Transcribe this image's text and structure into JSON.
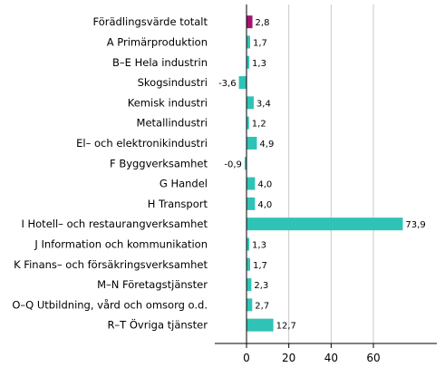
{
  "chart_data": {
    "type": "bar",
    "orientation": "horizontal",
    "categories": [
      "Förädlingsvärde totalt",
      "A Primärproduktion",
      "B–E Hela industrin",
      "Skogsindustri",
      "Kemisk industri",
      "Metallindustri",
      "El– och elektronikindustri",
      "F Byggverksamhet",
      "G Handel",
      "H Transport",
      "I Hotell– och restaurangverksamhet",
      "J Information och kommunikation",
      "K Finans– och försäkringsverksamhet",
      "M–N Företagstjänster",
      "O–Q Utbildning, vård och omsorg o.d.",
      "R–T Övriga tjänster"
    ],
    "values": [
      2.8,
      1.7,
      1.3,
      -3.6,
      3.4,
      1.2,
      4.9,
      -0.9,
      4.0,
      4.0,
      73.9,
      1.3,
      1.7,
      2.3,
      2.7,
      12.7
    ],
    "value_labels": [
      "2,8",
      "1,7",
      "1,3",
      "-3,6",
      "3,4",
      "1,2",
      "4,9",
      "-0,9",
      "4,0",
      "4,0",
      "73,9",
      "1,3",
      "1,7",
      "2,3",
      "2,7",
      "12,7"
    ],
    "xlim": [
      -15,
      90
    ],
    "xticks": [
      0,
      20,
      40,
      60
    ],
    "xtick_labels": [
      "0",
      "20",
      "40",
      "60"
    ],
    "grid": true,
    "colors": {
      "highlight": "#a6126e",
      "bar": "#2fc3b6",
      "grid": "#c8c8c8",
      "axis": "#000000"
    },
    "highlight_index": 0
  }
}
